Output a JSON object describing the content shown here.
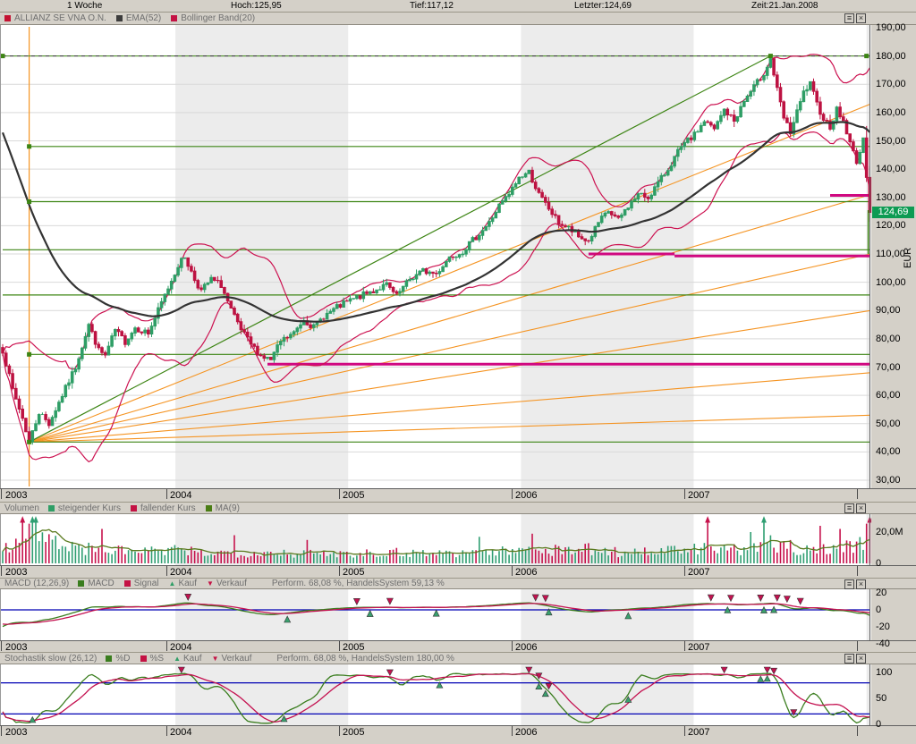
{
  "top_bar": {
    "period": "1 Woche",
    "hoch": "Hoch:125,95",
    "tief": "Tief:117,12",
    "letzter": "Letzter:124,69",
    "zeit": "Zeit:21.Jan.2008"
  },
  "panels": {
    "main": {
      "legend": [
        {
          "swatch": "square",
          "color": "#c41232",
          "label": "ALLIANZ SE VNA O.N."
        },
        {
          "swatch": "square",
          "color": "#3c3c3c",
          "label": "EMA(52)"
        },
        {
          "swatch": "square",
          "color": "#c41244",
          "label": "Bollinger Band(20)"
        }
      ]
    },
    "volume": {
      "title": "Volumen",
      "legend": [
        {
          "swatch": "square",
          "color": "#2f9e66",
          "label": "steigender Kurs"
        },
        {
          "swatch": "square",
          "color": "#c41244",
          "label": "fallender Kurs"
        },
        {
          "swatch": "square",
          "color": "#4a7d14",
          "label": "MA(9)"
        }
      ]
    },
    "macd": {
      "title": "MACD (12,26,9)",
      "legend": [
        {
          "swatch": "square",
          "color": "#3a7d1e",
          "label": "MACD"
        },
        {
          "swatch": "square",
          "color": "#c41244",
          "label": "Signal"
        },
        {
          "swatch": "triangle-up",
          "color": "#2f9e66",
          "label": "Kauf"
        },
        {
          "swatch": "triangle-down",
          "color": "#c41244",
          "label": "Verkauf"
        }
      ],
      "performance": "Perform. 68,08 %, HandelsSystem 59,13 %"
    },
    "stochastic": {
      "title": "Stochastik slow (26,12)",
      "legend": [
        {
          "swatch": "square",
          "color": "#3a7d1e",
          "label": "%D"
        },
        {
          "swatch": "square",
          "color": "#c41244",
          "label": "%S"
        },
        {
          "swatch": "triangle-up",
          "color": "#2f9e66",
          "label": "Kauf"
        },
        {
          "swatch": "triangle-down",
          "color": "#c41244",
          "label": "Verkauf"
        }
      ],
      "performance": "Perform. 68,08 %, HandelsSystem 180,00 %"
    },
    "menu_icon": "≡",
    "close_icon": "×"
  },
  "axis": {
    "unit": "EUR",
    "last_price": "124,69",
    "years": [
      "2003",
      "2004",
      "2005",
      "2006",
      "2007"
    ],
    "main_price_ticks": [
      190,
      180,
      170,
      160,
      150,
      140,
      130,
      120,
      110,
      100,
      90,
      80,
      70,
      60,
      50,
      40,
      30
    ],
    "volume_ticks": [
      {
        "v": 20,
        "t": "20,0M"
      },
      {
        "v": 0,
        "t": "0"
      }
    ],
    "macd_ticks": [
      {
        "v": 20,
        "t": "20"
      },
      {
        "v": 0,
        "t": "0"
      },
      {
        "v": -20,
        "t": "-20"
      },
      {
        "v": -40,
        "t": "-40"
      }
    ],
    "stoch_ticks": [
      {
        "v": 100,
        "t": "100"
      },
      {
        "v": 50,
        "t": "50"
      },
      {
        "v": 0,
        "t": "0"
      }
    ]
  },
  "colors": {
    "up": "#2f9e66",
    "down": "#bd1342",
    "bollinger": "#cc1150",
    "ema": "#333333",
    "green_line": "#3d8514",
    "orange": "#f59422",
    "magenta": "#d00880",
    "blue": "#0000b4",
    "vol_up": "#2f9e72",
    "vol_down": "#c6124c",
    "vol_ma": "#5a7a1e",
    "macd_line": "#3a7d1e",
    "signal_line": "#c41150",
    "stoch_d": "#3a7d1e",
    "stoch_s": "#c41150",
    "buy_fill": "#3aa06e",
    "sell_fill": "#c41150",
    "marker_edge": "#333333",
    "band": "#ececec",
    "grid": "#d9d9d9",
    "pricebox": "#0d9b53"
  },
  "chart_data": {
    "type": "candlestick",
    "title": "ALLIANZ SE VNA O.N.",
    "interval": "1 Woche",
    "weeks_total": 262,
    "x_years": [
      "2003",
      "2004",
      "2005",
      "2006",
      "2007"
    ],
    "price": {
      "ylim": [
        30,
        190
      ],
      "unit": "EUR",
      "last_value": 124.69,
      "week_high": 125.95,
      "week_low": 117.12,
      "ema_period": 52,
      "bollinger_period": 20,
      "anchors": [
        [
          0,
          76
        ],
        [
          3,
          62
        ],
        [
          6,
          52
        ],
        [
          8,
          43.5
        ],
        [
          11,
          54
        ],
        [
          14,
          50
        ],
        [
          18,
          60
        ],
        [
          22,
          70
        ],
        [
          26,
          85
        ],
        [
          29,
          76
        ],
        [
          31,
          74
        ],
        [
          34,
          83
        ],
        [
          37,
          79
        ],
        [
          40,
          84
        ],
        [
          44,
          82
        ],
        [
          47,
          90
        ],
        [
          50,
          98
        ],
        [
          53,
          106
        ],
        [
          55,
          109
        ],
        [
          58,
          101
        ],
        [
          60,
          97
        ],
        [
          63,
          101
        ],
        [
          66,
          99
        ],
        [
          69,
          90
        ],
        [
          72,
          83
        ],
        [
          75,
          78
        ],
        [
          78,
          74
        ],
        [
          81,
          72.5
        ],
        [
          84,
          79
        ],
        [
          88,
          82
        ],
        [
          91,
          87
        ],
        [
          94,
          84
        ],
        [
          97,
          88
        ],
        [
          101,
          91
        ],
        [
          104,
          93
        ],
        [
          108,
          95
        ],
        [
          112,
          97
        ],
        [
          116,
          99
        ],
        [
          119,
          95
        ],
        [
          123,
          101
        ],
        [
          127,
          104
        ],
        [
          131,
          103
        ],
        [
          135,
          109
        ],
        [
          139,
          111
        ],
        [
          143,
          116
        ],
        [
          147,
          121
        ],
        [
          150,
          127
        ],
        [
          153,
          131
        ],
        [
          156,
          137
        ],
        [
          159,
          139
        ],
        [
          162,
          131
        ],
        [
          165,
          126
        ],
        [
          168,
          121
        ],
        [
          171,
          119
        ],
        [
          174,
          116
        ],
        [
          177,
          114.5
        ],
        [
          180,
          121
        ],
        [
          183,
          125
        ],
        [
          186,
          122
        ],
        [
          189,
          127
        ],
        [
          192,
          131
        ],
        [
          195,
          130
        ],
        [
          198,
          135
        ],
        [
          201,
          140
        ],
        [
          204,
          146
        ],
        [
          207,
          150
        ],
        [
          209,
          152
        ],
        [
          212,
          157
        ],
        [
          215,
          154
        ],
        [
          218,
          161
        ],
        [
          221,
          157
        ],
        [
          224,
          164
        ],
        [
          227,
          169
        ],
        [
          230,
          174
        ],
        [
          232,
          179
        ],
        [
          234,
          168
        ],
        [
          236,
          158
        ],
        [
          238,
          153
        ],
        [
          240,
          160
        ],
        [
          242,
          167
        ],
        [
          244,
          170
        ],
        [
          246,
          163
        ],
        [
          248,
          158
        ],
        [
          250,
          155
        ],
        [
          252,
          161
        ],
        [
          254,
          157
        ],
        [
          256,
          149
        ],
        [
          258,
          143
        ],
        [
          259,
          146
        ],
        [
          260,
          150
        ],
        [
          261,
          138
        ],
        [
          262,
          124.69
        ]
      ]
    },
    "drawings": {
      "hlines_green": [
        {
          "value": 180,
          "from_week": 0,
          "to_week": 262,
          "dashed": true,
          "marker_weeks": [
            0,
            232,
            261
          ]
        },
        {
          "value": 148,
          "from_week": 8,
          "to_week": 262,
          "dashed": false,
          "marker_weeks": [
            8
          ]
        },
        {
          "value": 128.5,
          "from_week": 8,
          "to_week": 262,
          "dashed": false,
          "marker_weeks": [
            8
          ]
        },
        {
          "value": 111.5,
          "from_week": 0,
          "to_week": 262,
          "dashed": false,
          "marker_weeks": []
        },
        {
          "value": 95.5,
          "from_week": 0,
          "to_week": 262,
          "dashed": false,
          "marker_weeks": []
        },
        {
          "value": 74.5,
          "from_week": 8,
          "to_week": 262,
          "dashed": false,
          "marker_weeks": [
            8
          ]
        },
        {
          "value": 43.5,
          "from_week": 8,
          "to_week": 262,
          "dashed": false,
          "marker_weeks": [
            8
          ]
        }
      ],
      "hlines_magenta": [
        {
          "value": 71,
          "from_week": 80,
          "to_week": 262
        },
        {
          "value": 110,
          "from_week": 177,
          "to_week": 203
        },
        {
          "value": 109.3,
          "from_week": 203,
          "to_week": 262
        },
        {
          "value": 130.7,
          "from_week": 250,
          "to_week": 262
        }
      ],
      "orange_vline_week": 8,
      "fan": {
        "origin_week": 8,
        "origin_value": 43.5,
        "end_values": [
          163,
          131,
          110,
          90,
          68,
          53
        ]
      },
      "trendline": {
        "from": [
          8,
          43.5
        ],
        "to": [
          232,
          180
        ]
      },
      "green_vseg": {
        "week": 261.5,
        "from_value": 110,
        "to_value": 125.5
      }
    },
    "volume": {
      "ylim_millions": [
        0,
        32
      ],
      "ma_period": 9,
      "anchors": [
        [
          0,
          10
        ],
        [
          4,
          15
        ],
        [
          7,
          19
        ],
        [
          10,
          21
        ],
        [
          13,
          16
        ],
        [
          17,
          12
        ],
        [
          21,
          10
        ],
        [
          26,
          9
        ],
        [
          34,
          8
        ],
        [
          44,
          7.5
        ],
        [
          52,
          8
        ],
        [
          58,
          7
        ],
        [
          68,
          6.5
        ],
        [
          81,
          7
        ],
        [
          92,
          6
        ],
        [
          104,
          6.5
        ],
        [
          118,
          7
        ],
        [
          132,
          6.5
        ],
        [
          145,
          7
        ],
        [
          156,
          8
        ],
        [
          160,
          9.5
        ],
        [
          168,
          8
        ],
        [
          177,
          9
        ],
        [
          186,
          7
        ],
        [
          196,
          7.5
        ],
        [
          204,
          8
        ],
        [
          209,
          8.5
        ],
        [
          214,
          10
        ],
        [
          222,
          8
        ],
        [
          228,
          9
        ],
        [
          232,
          12
        ],
        [
          236,
          11
        ],
        [
          240,
          9
        ],
        [
          244,
          9.5
        ],
        [
          250,
          9
        ],
        [
          254,
          10
        ],
        [
          258,
          11
        ],
        [
          262,
          20
        ]
      ],
      "spikes": [
        [
          6,
          29
        ],
        [
          9,
          31
        ],
        [
          10,
          27
        ],
        [
          30,
          22
        ],
        [
          70,
          18
        ],
        [
          92,
          15
        ],
        [
          144,
          17
        ],
        [
          160,
          19
        ],
        [
          213,
          28
        ],
        [
          226,
          20
        ],
        [
          230,
          27
        ],
        [
          247,
          24
        ],
        [
          253,
          22
        ],
        [
          262,
          30
        ]
      ]
    },
    "macd": {
      "params": [
        12,
        26,
        9
      ],
      "ylim": [
        -40,
        20
      ],
      "zero_line": 0,
      "buy_weeks": [
        86,
        111,
        131,
        165,
        189,
        219,
        230,
        233
      ],
      "sell_weeks": [
        56,
        107,
        117,
        161,
        164,
        214,
        220,
        229,
        234,
        237,
        241
      ]
    },
    "stochastic": {
      "params": [
        26,
        12
      ],
      "ylim": [
        0,
        100
      ],
      "levels": [
        80,
        20
      ],
      "buy_weeks": [
        9,
        85,
        132,
        162,
        164,
        189,
        229,
        231
      ],
      "sell_weeks": [
        54,
        117,
        159,
        162,
        165,
        218,
        231,
        233,
        239
      ]
    }
  }
}
